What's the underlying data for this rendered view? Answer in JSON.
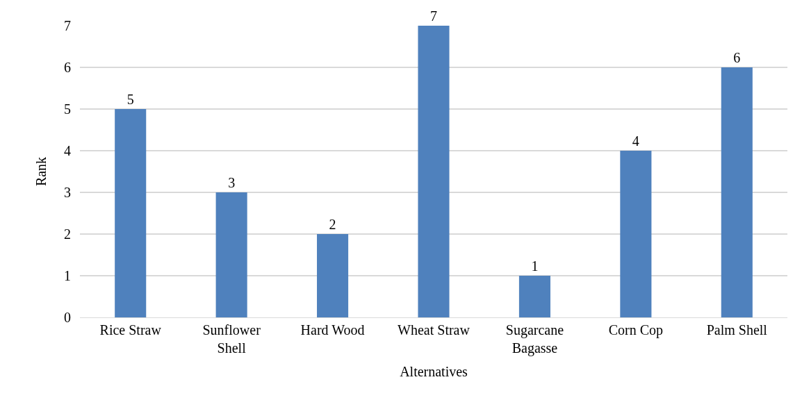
{
  "chart_data": {
    "type": "bar",
    "xlabel": "Alternatives",
    "ylabel": "Rank",
    "categories": [
      "Rice Straw",
      "Sunflower Shell",
      "Hard Wood",
      "Wheat Straw",
      "Sugarcane Bagasse",
      "Corn Cop",
      "Palm Shell"
    ],
    "values": [
      5,
      3,
      2,
      7,
      1,
      4,
      6
    ],
    "color": "#4f81bd",
    "ylim": [
      0,
      7
    ],
    "yticks": [
      0,
      1,
      2,
      3,
      4,
      5,
      6,
      7
    ],
    "grid": "y",
    "data_labels": true
  }
}
